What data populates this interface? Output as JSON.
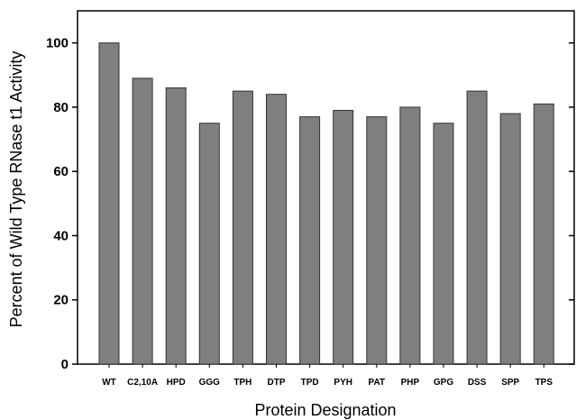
{
  "chart_data": {
    "type": "bar",
    "title": "",
    "xlabel": "Protein Designation",
    "ylabel": "Percent of Wild Type RNase t1 Activity",
    "categories": [
      "WT",
      "C2,10A",
      "HPD",
      "GGG",
      "TPH",
      "DTP",
      "TPD",
      "PYH",
      "PAT",
      "PHP",
      "GPG",
      "DSS",
      "SPP",
      "TPS"
    ],
    "values": [
      100,
      89,
      86,
      75,
      85,
      84,
      77,
      79,
      77,
      80,
      75,
      85,
      78,
      81
    ],
    "ylim": [
      0,
      110
    ],
    "yticks": [
      0,
      20,
      40,
      60,
      80,
      100
    ],
    "grid": false,
    "legend": "none",
    "bar_color": "#7f7f7f",
    "bar_edge_color": "#333333"
  }
}
